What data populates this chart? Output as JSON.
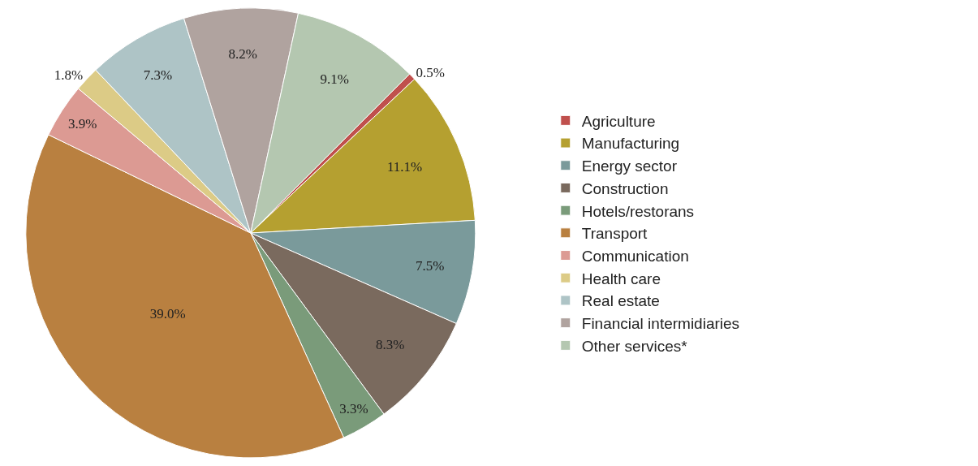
{
  "chart_data": {
    "type": "pie",
    "categories": [
      "Agriculture",
      "Manufacturing",
      "Energy sector",
      "Construction",
      "Hotels/restorans",
      "Transport",
      "Communication",
      "Health care",
      "Real estate",
      "Financial intermidiaries",
      "Other services*"
    ],
    "values": [
      0.5,
      11.1,
      7.5,
      8.3,
      3.3,
      39.0,
      3.9,
      1.8,
      7.3,
      8.2,
      9.1
    ],
    "value_labels": [
      "0.5%",
      "11.1%",
      "7.5%",
      "8.3%",
      "3.3%",
      "39.0%",
      "3.9%",
      "1.8%",
      "7.3%",
      "8.2%",
      "9.1%"
    ],
    "colors": [
      "#c0504d",
      "#b5a030",
      "#7a9a9b",
      "#7a6a5e",
      "#7a9b7a",
      "#b98040",
      "#dc9a93",
      "#dccb86",
      "#aec4c6",
      "#b0a39f",
      "#b4c7b0"
    ],
    "legend": "right"
  }
}
